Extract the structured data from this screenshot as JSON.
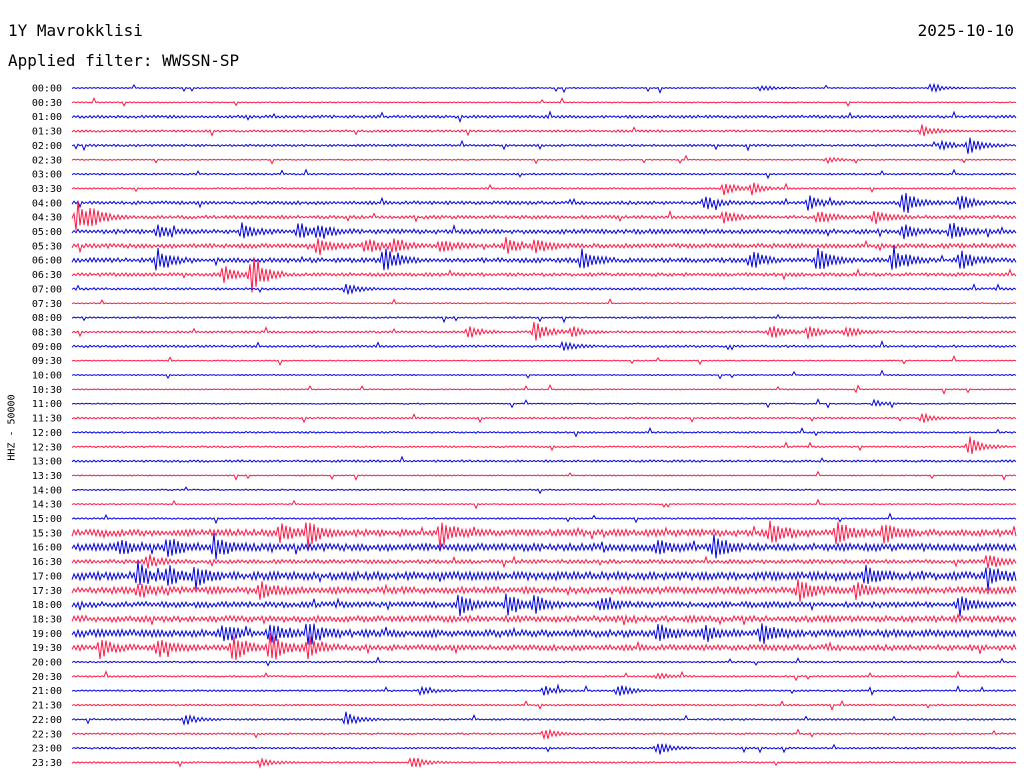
{
  "header": {
    "station": "1Y Mavrokklisi",
    "date": "2025-10-10",
    "filter": "Applied filter: WWSSN-SP"
  },
  "chart_data": {
    "type": "line",
    "title": "1Y Mavrokklisi",
    "ylabel": "HHZ - 50000",
    "rows": [
      "00:00",
      "00:30",
      "01:00",
      "01:30",
      "02:00",
      "02:30",
      "03:00",
      "03:30",
      "04:00",
      "04:30",
      "05:00",
      "05:30",
      "06:00",
      "06:30",
      "07:00",
      "07:30",
      "08:00",
      "08:30",
      "09:00",
      "09:30",
      "10:00",
      "10:30",
      "11:00",
      "11:30",
      "12:00",
      "12:30",
      "13:00",
      "13:30",
      "14:00",
      "14:30",
      "15:00",
      "15:30",
      "16:00",
      "16:30",
      "17:00",
      "17:30",
      "18:00",
      "18:30",
      "19:00",
      "19:30",
      "20:00",
      "20:30",
      "21:00",
      "21:30",
      "22:00",
      "22:30",
      "23:00",
      "23:30"
    ],
    "colors": [
      "#0000e0",
      "#ff1744"
    ],
    "noise": [
      0.4,
      0.4,
      1,
      0.8,
      0.8,
      0.4,
      0.6,
      0.6,
      1.2,
      1.2,
      1.6,
      1.6,
      1.6,
      1.2,
      0.8,
      0.4,
      0.6,
      0.8,
      0.8,
      0.4,
      0.4,
      0.4,
      0.4,
      0.6,
      0.6,
      0.6,
      0.8,
      0.4,
      0.5,
      0.4,
      0.6,
      2.4,
      2.6,
      1.4,
      2.8,
      2.4,
      2,
      2.2,
      2.6,
      2,
      0.6,
      0.6,
      0.6,
      0.6,
      0.6,
      0.6,
      0.6,
      0.6
    ],
    "events": [
      {
        "row": 0,
        "t": 0.73,
        "a": 3
      },
      {
        "row": 0,
        "t": 0.91,
        "a": 4
      },
      {
        "row": 3,
        "t": 0.9,
        "a": 5
      },
      {
        "row": 4,
        "t": 0.92,
        "a": 4
      },
      {
        "row": 4,
        "t": 0.95,
        "a": 8
      },
      {
        "row": 5,
        "t": 0.8,
        "a": 3
      },
      {
        "row": 7,
        "t": 0.69,
        "a": 6
      },
      {
        "row": 7,
        "t": 0.72,
        "a": 5
      },
      {
        "row": 8,
        "t": 0.67,
        "a": 7
      },
      {
        "row": 8,
        "t": 0.78,
        "a": 6
      },
      {
        "row": 8,
        "t": 0.88,
        "a": 12
      },
      {
        "row": 8,
        "t": 0.94,
        "a": 7
      },
      {
        "row": 9,
        "t": 0.005,
        "a": 14
      },
      {
        "row": 9,
        "t": 0.02,
        "a": 8
      },
      {
        "row": 9,
        "t": 0.69,
        "a": 6
      },
      {
        "row": 9,
        "t": 0.79,
        "a": 6
      },
      {
        "row": 9,
        "t": 0.85,
        "a": 6
      },
      {
        "row": 10,
        "t": 0.09,
        "a": 6
      },
      {
        "row": 10,
        "t": 0.18,
        "a": 7
      },
      {
        "row": 10,
        "t": 0.24,
        "a": 7
      },
      {
        "row": 10,
        "t": 0.26,
        "a": 6
      },
      {
        "row": 10,
        "t": 0.88,
        "a": 6
      },
      {
        "row": 10,
        "t": 0.93,
        "a": 8
      },
      {
        "row": 11,
        "t": 0.26,
        "a": 8
      },
      {
        "row": 11,
        "t": 0.31,
        "a": 8
      },
      {
        "row": 11,
        "t": 0.34,
        "a": 7
      },
      {
        "row": 11,
        "t": 0.39,
        "a": 6
      },
      {
        "row": 11,
        "t": 0.46,
        "a": 7
      },
      {
        "row": 11,
        "t": 0.49,
        "a": 7
      },
      {
        "row": 12,
        "t": 0.09,
        "a": 10
      },
      {
        "row": 12,
        "t": 0.33,
        "a": 12
      },
      {
        "row": 12,
        "t": 0.54,
        "a": 10
      },
      {
        "row": 12,
        "t": 0.72,
        "a": 9
      },
      {
        "row": 12,
        "t": 0.79,
        "a": 11
      },
      {
        "row": 12,
        "t": 0.87,
        "a": 12
      },
      {
        "row": 12,
        "t": 0.94,
        "a": 10
      },
      {
        "row": 13,
        "t": 0.16,
        "a": 8
      },
      {
        "row": 13,
        "t": 0.19,
        "a": 20
      },
      {
        "row": 14,
        "t": 0.29,
        "a": 5
      },
      {
        "row": 17,
        "t": 0.42,
        "a": 5
      },
      {
        "row": 17,
        "t": 0.49,
        "a": 10
      },
      {
        "row": 17,
        "t": 0.53,
        "a": 5
      },
      {
        "row": 17,
        "t": 0.74,
        "a": 7
      },
      {
        "row": 17,
        "t": 0.78,
        "a": 6
      },
      {
        "row": 17,
        "t": 0.82,
        "a": 5
      },
      {
        "row": 18,
        "t": 0.52,
        "a": 4
      },
      {
        "row": 22,
        "t": 0.85,
        "a": 3
      },
      {
        "row": 23,
        "t": 0.9,
        "a": 4
      },
      {
        "row": 25,
        "t": 0.95,
        "a": 10
      },
      {
        "row": 31,
        "t": 0.22,
        "a": 8
      },
      {
        "row": 31,
        "t": 0.25,
        "a": 12
      },
      {
        "row": 31,
        "t": 0.39,
        "a": 13
      },
      {
        "row": 31,
        "t": 0.74,
        "a": 9
      },
      {
        "row": 31,
        "t": 0.81,
        "a": 10
      },
      {
        "row": 31,
        "t": 0.86,
        "a": 8
      },
      {
        "row": 32,
        "t": 0.05,
        "a": 7
      },
      {
        "row": 32,
        "t": 0.1,
        "a": 9
      },
      {
        "row": 32,
        "t": 0.15,
        "a": 11
      },
      {
        "row": 32,
        "t": 0.62,
        "a": 6
      },
      {
        "row": 32,
        "t": 0.68,
        "a": 10
      },
      {
        "row": 33,
        "t": 0.08,
        "a": 6
      },
      {
        "row": 33,
        "t": 0.97,
        "a": 7
      },
      {
        "row": 34,
        "t": 0.07,
        "a": 10
      },
      {
        "row": 34,
        "t": 0.1,
        "a": 8
      },
      {
        "row": 34,
        "t": 0.13,
        "a": 9
      },
      {
        "row": 34,
        "t": 0.84,
        "a": 9
      },
      {
        "row": 34,
        "t": 0.97,
        "a": 10
      },
      {
        "row": 35,
        "t": 0.07,
        "a": 6
      },
      {
        "row": 35,
        "t": 0.2,
        "a": 7
      },
      {
        "row": 35,
        "t": 0.77,
        "a": 11
      },
      {
        "row": 35,
        "t": 0.83,
        "a": 6
      },
      {
        "row": 36,
        "t": 0.41,
        "a": 9
      },
      {
        "row": 36,
        "t": 0.46,
        "a": 10
      },
      {
        "row": 36,
        "t": 0.49,
        "a": 8
      },
      {
        "row": 36,
        "t": 0.56,
        "a": 6
      },
      {
        "row": 36,
        "t": 0.94,
        "a": 9
      },
      {
        "row": 38,
        "t": 0.16,
        "a": 8
      },
      {
        "row": 38,
        "t": 0.21,
        "a": 10
      },
      {
        "row": 38,
        "t": 0.25,
        "a": 11
      },
      {
        "row": 38,
        "t": 0.62,
        "a": 7
      },
      {
        "row": 38,
        "t": 0.67,
        "a": 6
      },
      {
        "row": 38,
        "t": 0.73,
        "a": 10
      },
      {
        "row": 39,
        "t": 0.03,
        "a": 8
      },
      {
        "row": 39,
        "t": 0.09,
        "a": 8
      },
      {
        "row": 39,
        "t": 0.17,
        "a": 12
      },
      {
        "row": 39,
        "t": 0.21,
        "a": 13
      },
      {
        "row": 39,
        "t": 0.25,
        "a": 10
      },
      {
        "row": 41,
        "t": 0.62,
        "a": 3
      },
      {
        "row": 42,
        "t": 0.37,
        "a": 4
      },
      {
        "row": 42,
        "t": 0.5,
        "a": 4
      },
      {
        "row": 42,
        "t": 0.58,
        "a": 5
      },
      {
        "row": 44,
        "t": 0.12,
        "a": 5
      },
      {
        "row": 44,
        "t": 0.29,
        "a": 7
      },
      {
        "row": 45,
        "t": 0.5,
        "a": 5
      },
      {
        "row": 46,
        "t": 0.62,
        "a": 6
      },
      {
        "row": 47,
        "t": 0.2,
        "a": 4
      },
      {
        "row": 47,
        "t": 0.36,
        "a": 6
      }
    ]
  }
}
